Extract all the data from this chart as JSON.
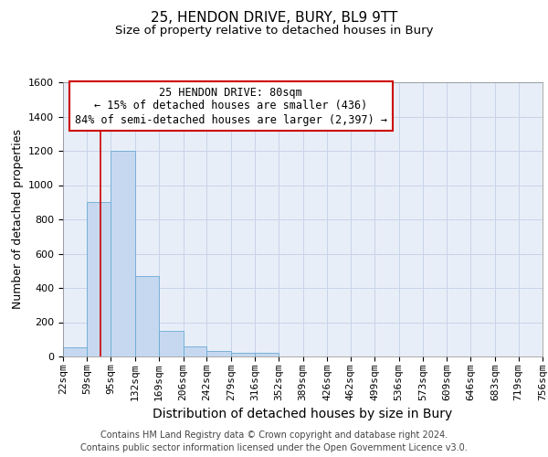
{
  "title": "25, HENDON DRIVE, BURY, BL9 9TT",
  "subtitle": "Size of property relative to detached houses in Bury",
  "xlabel": "Distribution of detached houses by size in Bury",
  "ylabel": "Number of detached properties",
  "bins": [
    "22sqm",
    "59sqm",
    "95sqm",
    "132sqm",
    "169sqm",
    "206sqm",
    "242sqm",
    "279sqm",
    "316sqm",
    "352sqm",
    "389sqm",
    "426sqm",
    "462sqm",
    "499sqm",
    "536sqm",
    "573sqm",
    "609sqm",
    "646sqm",
    "683sqm",
    "719sqm",
    "756sqm"
  ],
  "bin_edges": [
    22,
    59,
    95,
    132,
    169,
    206,
    242,
    279,
    316,
    352,
    389,
    426,
    462,
    499,
    536,
    573,
    609,
    646,
    683,
    719,
    756
  ],
  "bar_heights": [
    55,
    900,
    1200,
    470,
    150,
    60,
    30,
    20,
    20,
    0,
    0,
    0,
    0,
    0,
    0,
    0,
    0,
    0,
    0,
    0
  ],
  "bar_color": "#c5d8f0",
  "bar_edge_color": "#6aaad4",
  "grid_color": "#c8d4e8",
  "background_color": "#e8eef8",
  "property_line_x": 80,
  "property_line_color": "#cc0000",
  "annotation_text": "25 HENDON DRIVE: 80sqm\n← 15% of detached houses are smaller (436)\n84% of semi-detached houses are larger (2,397) →",
  "annotation_box_color": "#cc0000",
  "ylim": [
    0,
    1600
  ],
  "yticks": [
    0,
    200,
    400,
    600,
    800,
    1000,
    1200,
    1400,
    1600
  ],
  "footer": "Contains HM Land Registry data © Crown copyright and database right 2024.\nContains public sector information licensed under the Open Government Licence v3.0.",
  "title_fontsize": 11,
  "subtitle_fontsize": 9.5,
  "xlabel_fontsize": 10,
  "ylabel_fontsize": 9,
  "tick_fontsize": 8,
  "footer_fontsize": 7,
  "annotation_fontsize": 8.5
}
